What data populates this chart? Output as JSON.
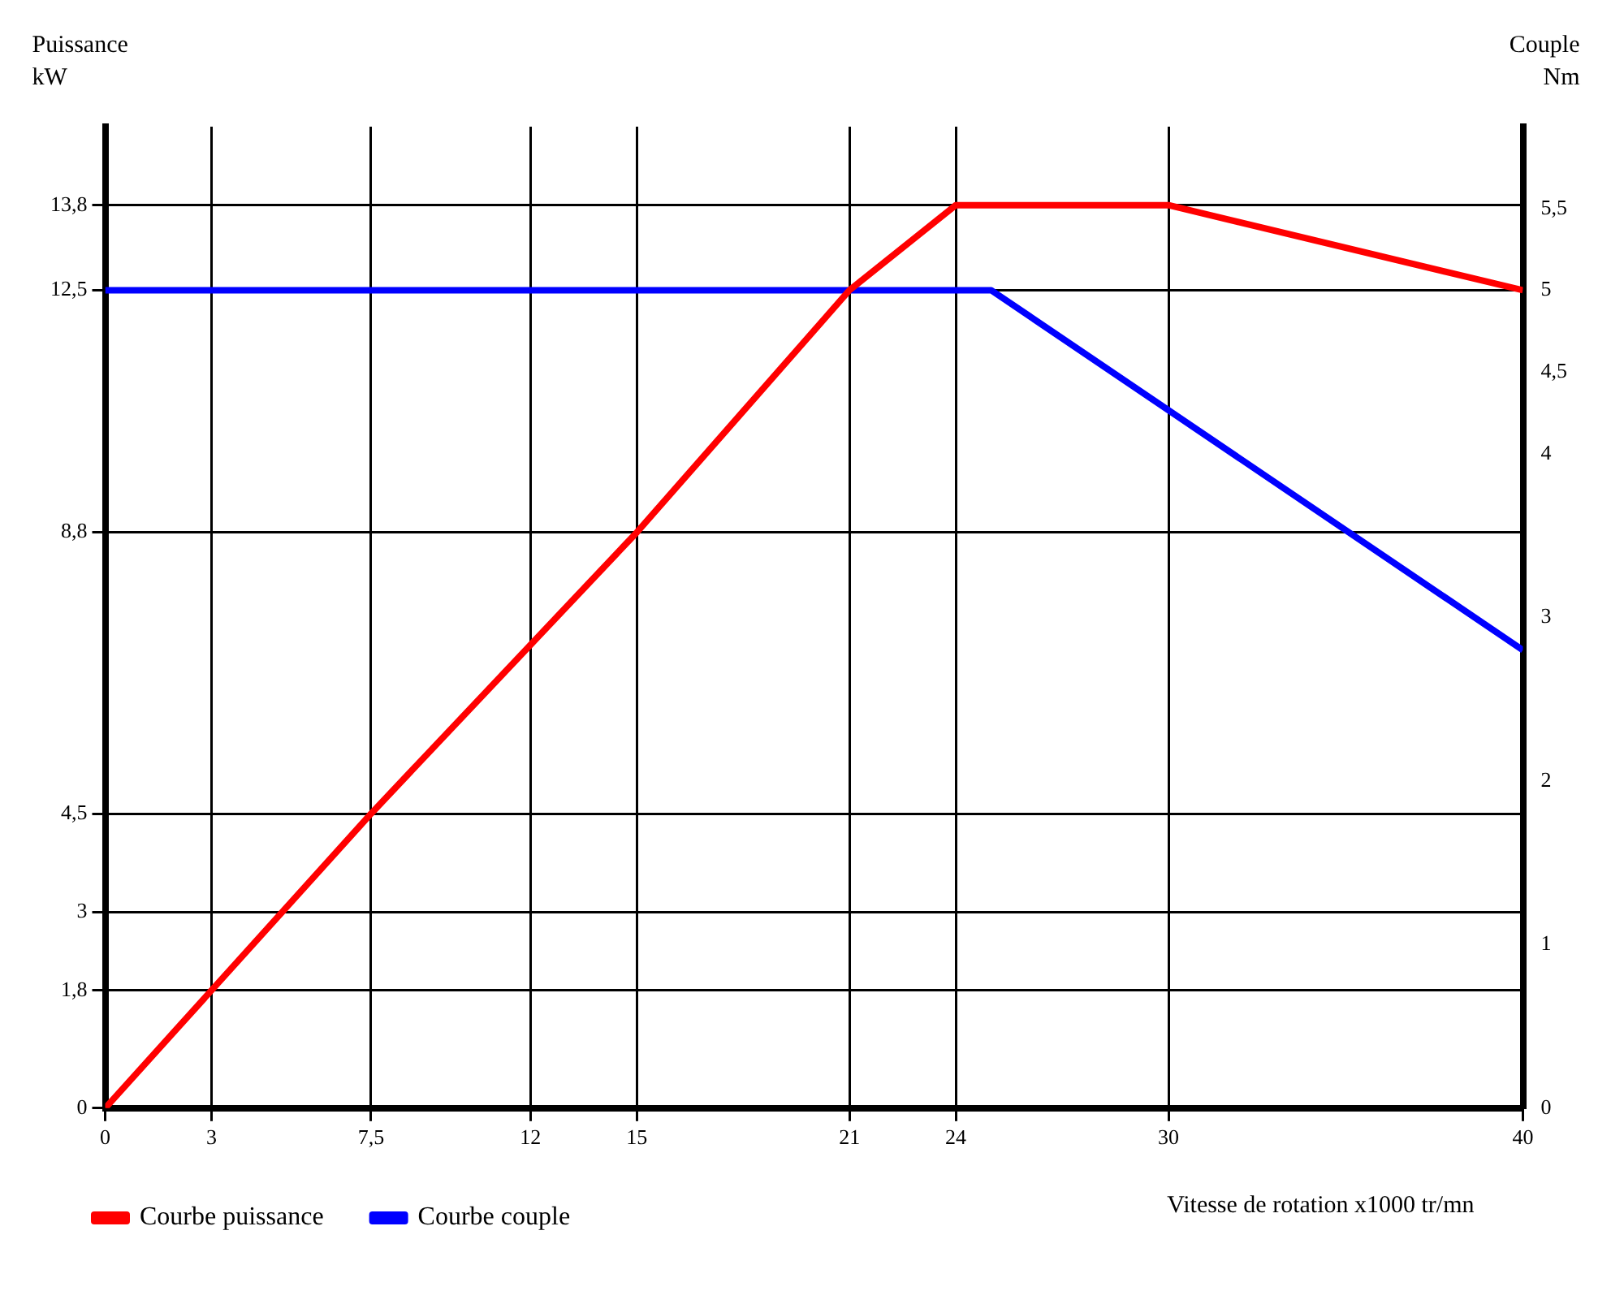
{
  "chart_data": {
    "type": "line",
    "xlabel": "Vitesse de rotation x1000 tr/mn",
    "ylabel": "Puissance\nkW",
    "y2label": "Couple\nNm",
    "series": [
      {
        "name": "Courbe puissance",
        "color": "#ff0000",
        "x": [
          0,
          7.5,
          15,
          21,
          24,
          30,
          40
        ],
        "values": [
          0,
          4.5,
          8.8,
          12.5,
          13.8,
          13.8,
          12.5
        ]
      },
      {
        "name": "Courbe couple",
        "color": "#0000ff",
        "axis": "y2",
        "x": [
          0,
          25,
          40
        ],
        "values": [
          5,
          5,
          2.8
        ]
      }
    ],
    "xlim": [
      0,
      40
    ],
    "xticks": [
      0,
      3,
      {
        "value": 7.5,
        "label": "7,5"
      },
      12,
      15,
      21,
      24,
      30,
      40
    ],
    "ylim": [
      0,
      15
    ],
    "yticks": [
      0,
      {
        "value": 1.8,
        "label": "1,8"
      },
      3,
      {
        "value": 4.5,
        "label": "4,5"
      },
      {
        "value": 8.8,
        "label": "8,8"
      },
      {
        "value": 12.5,
        "label": "12,5"
      },
      {
        "value": 13.8,
        "label": "13,8"
      }
    ],
    "y2lim": [
      0,
      6
    ],
    "y2ticks": [
      0,
      1,
      2,
      3,
      4,
      {
        "value": 4.5,
        "label": "4,5"
      },
      5,
      {
        "value": 5.5,
        "label": "5,5"
      }
    ],
    "grid": true,
    "legend": "bottom left",
    "marker": "none",
    "line_style": "solid"
  }
}
